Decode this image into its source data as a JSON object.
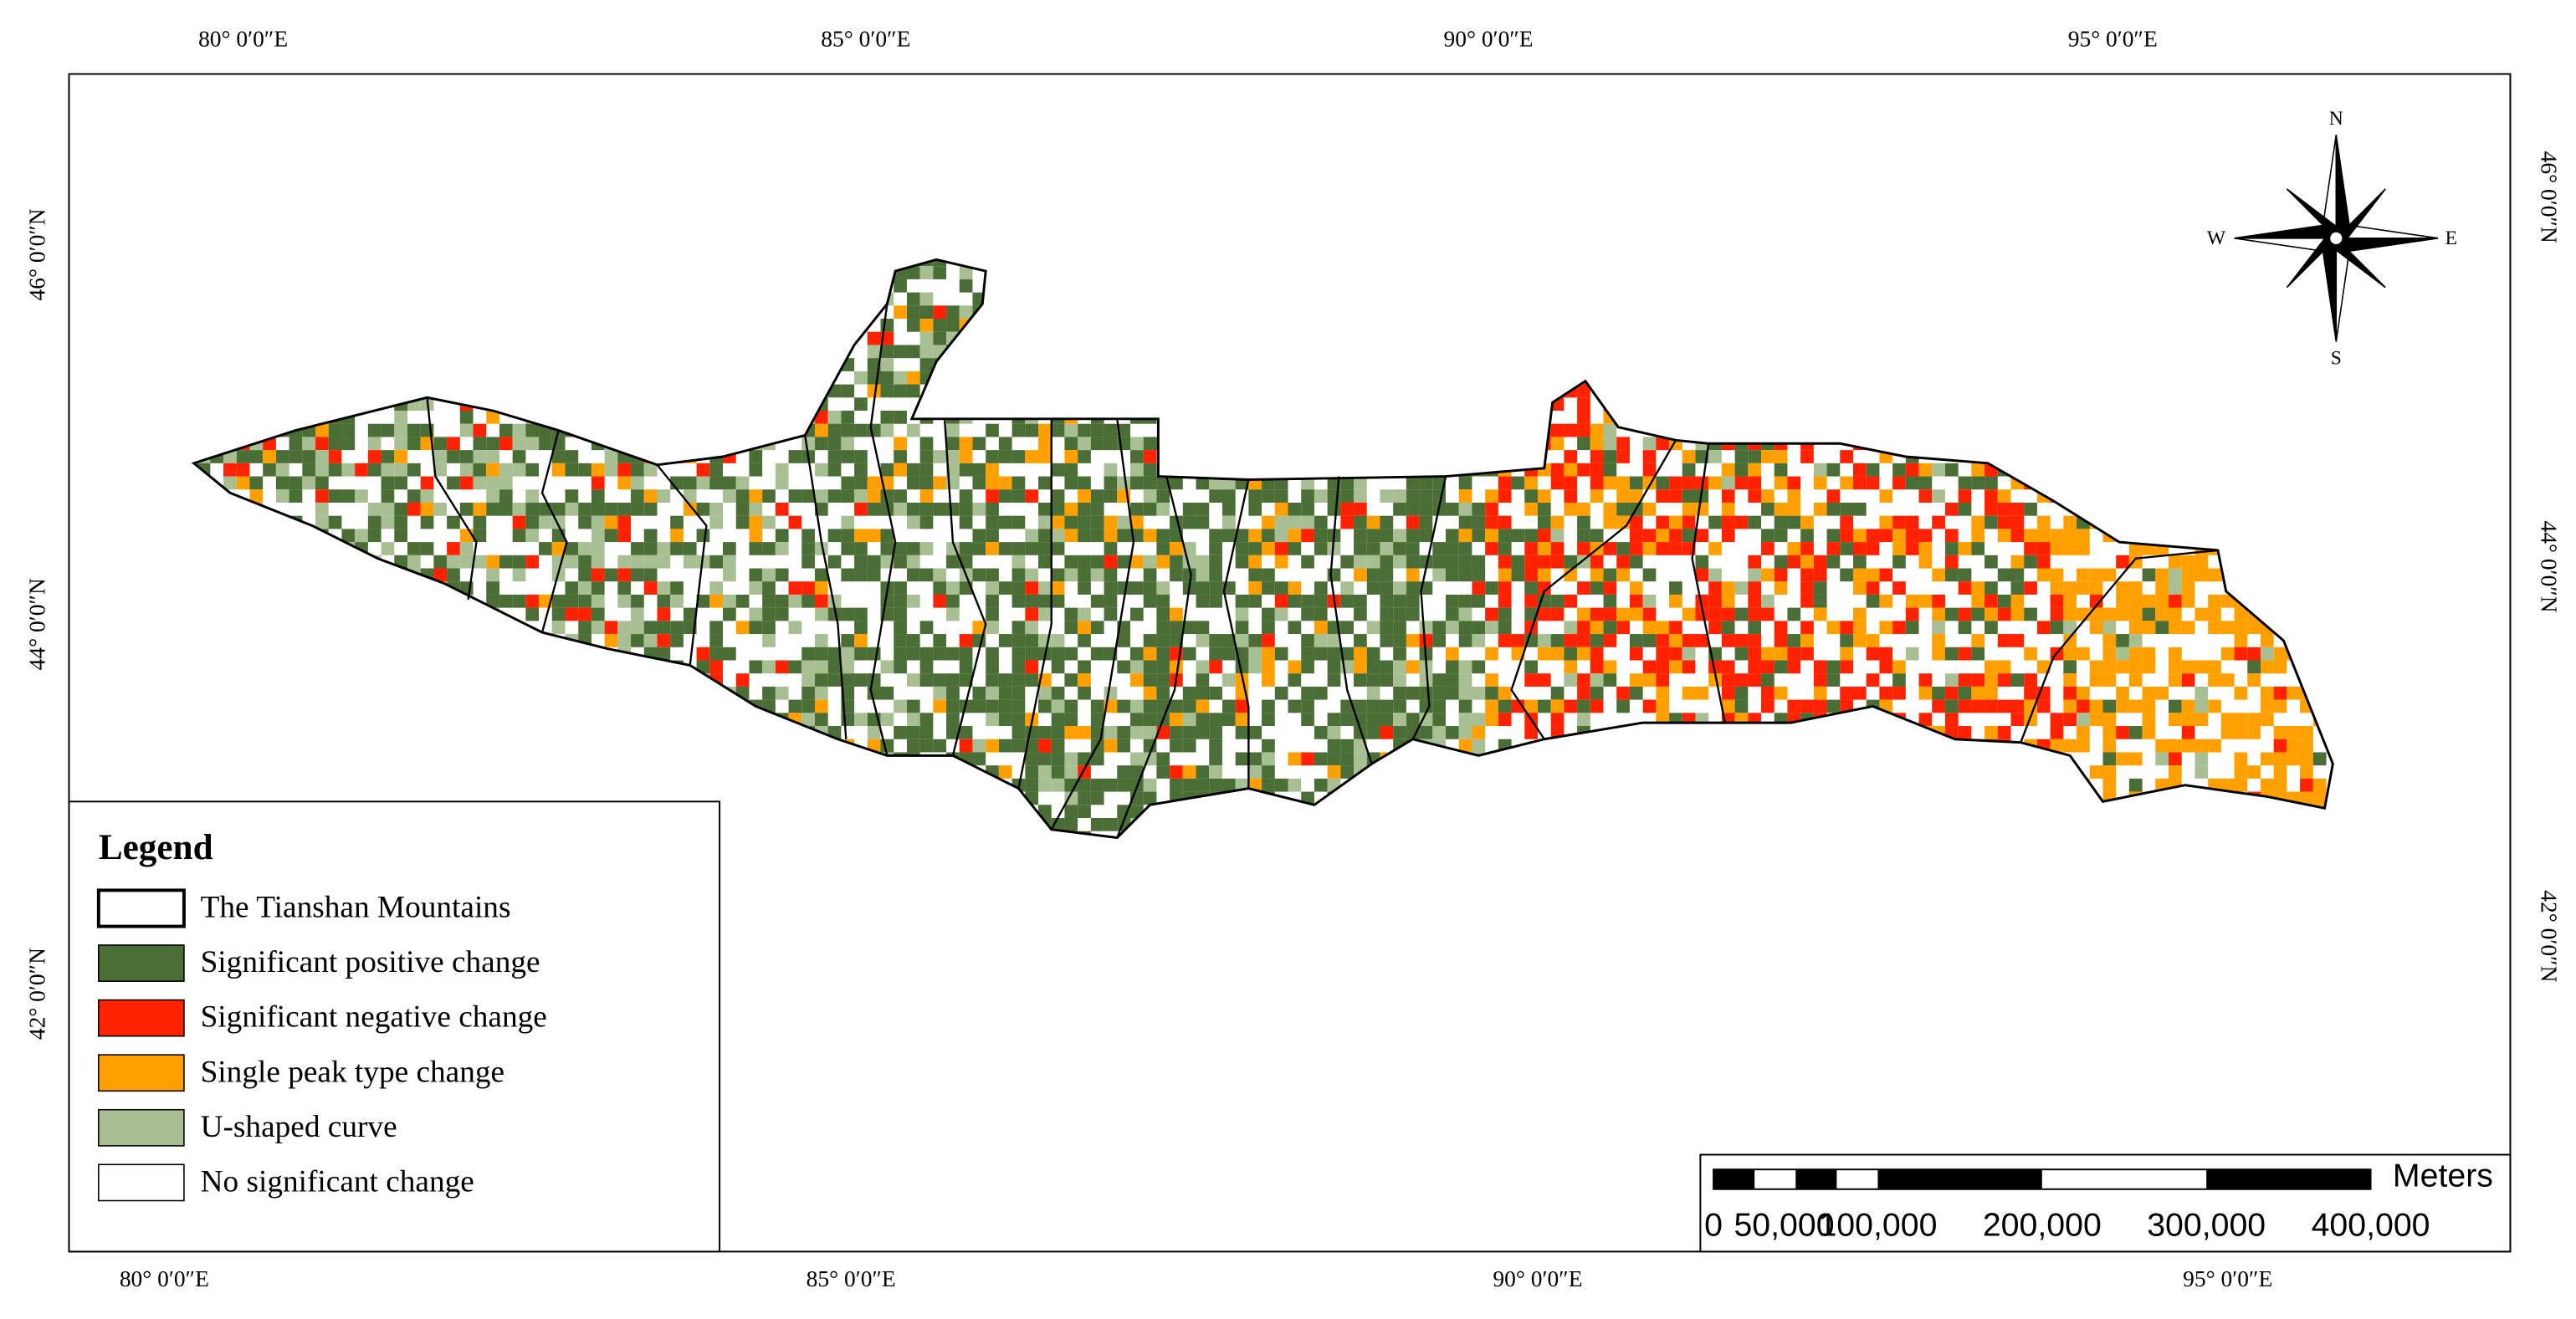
{
  "longitude_labels": [
    "80° 0′0″E",
    "85° 0′0″E",
    "90° 0′0″E",
    "95° 0′0″E"
  ],
  "latitude_labels": [
    "46° 0′0″N",
    "44° 0′0″N",
    "42° 0′0″N"
  ],
  "legend": {
    "title": "Legend",
    "items": [
      {
        "label": "The Tianshan Mountains",
        "color": "#ffffff"
      },
      {
        "label": "Significant positive change",
        "color": "#4a6e35"
      },
      {
        "label": "Significant negative change",
        "color": "#ff2200"
      },
      {
        "label": "Single peak type change",
        "color": "#ffa000"
      },
      {
        "label": "U-shaped curve",
        "color": "#a8bf93"
      },
      {
        "label": "No significant change",
        "color": "#ffffff"
      }
    ]
  },
  "compass": {
    "n": "N",
    "s": "S",
    "e": "E",
    "w": "W"
  },
  "scale_bar": {
    "labels": [
      "0",
      "50,000",
      "100,000",
      "200,000",
      "300,000",
      "400,000"
    ],
    "unit": "Meters"
  }
}
